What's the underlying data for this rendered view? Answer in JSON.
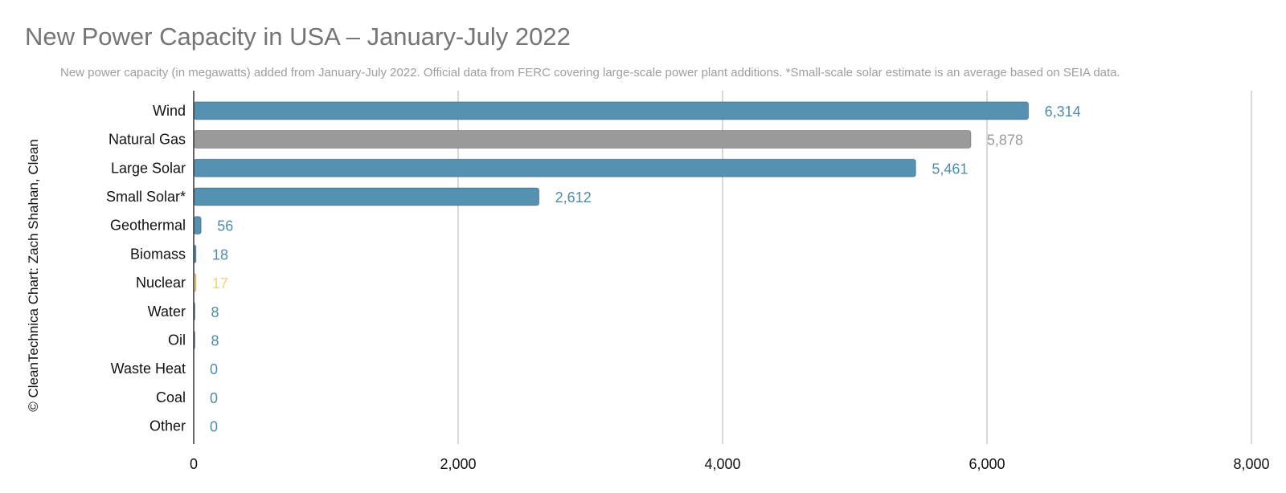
{
  "chart_data": {
    "type": "bar",
    "orientation": "horizontal",
    "title": "New Power Capacity in USA – January-July 2022",
    "subtitle": "New power capacity (in megawatts) added from January-July 2022. Official data from FERC covering large-scale power plant additions. *Small-scale solar estimate is an average based on SEIA data.",
    "ylabel": "© CleanTechnica Chart: Zach Shahan, Clean",
    "xlabel": "",
    "categories": [
      "Wind",
      "Natural Gas",
      "Large Solar",
      "Small Solar*",
      "Geothermal",
      "Biomass",
      "Nuclear",
      "Water",
      "Oil",
      "Waste Heat",
      "Coal",
      "Other"
    ],
    "values": [
      6314,
      5878,
      5461,
      2612,
      56,
      18,
      17,
      8,
      8,
      0,
      0,
      0
    ],
    "value_labels": [
      "6,314",
      "5,878",
      "5,461",
      "2,612",
      "56",
      "18",
      "17",
      "8",
      "8",
      "0",
      "0",
      "0"
    ],
    "bar_colors": [
      "#5591b0",
      "#9a9a9a",
      "#5591b0",
      "#5591b0",
      "#5591b0",
      "#5591b0",
      "#f2d37a",
      "#5591b0",
      "#5591b0",
      "#5591b0",
      "#5591b0",
      "#5591b0"
    ],
    "label_colors": [
      "#4e8caa",
      "#9a9a9a",
      "#4e8caa",
      "#4e8caa",
      "#4e8caa",
      "#4e8caa",
      "#f2d37a",
      "#4e8caa",
      "#4e8caa",
      "#4e8caa",
      "#4e8caa",
      "#4e8caa"
    ],
    "xlim": [
      0,
      8000
    ],
    "xticks": [
      0,
      2000,
      4000,
      6000,
      8000
    ],
    "xtick_labels": [
      "0",
      "2,000",
      "4,000",
      "6,000",
      "8,000"
    ],
    "grid": true,
    "legend": "none"
  }
}
